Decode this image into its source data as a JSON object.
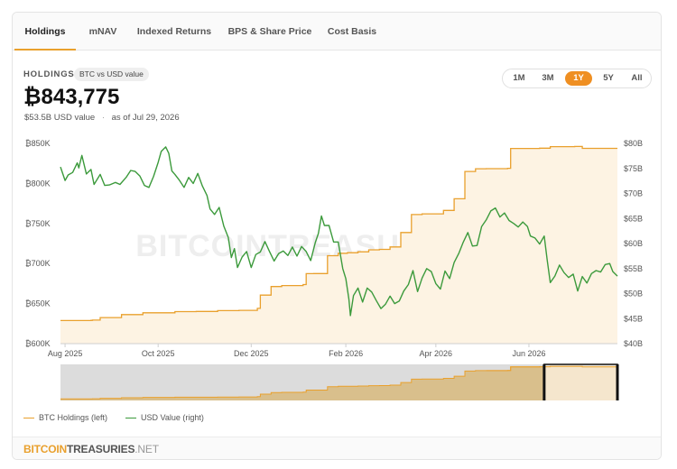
{
  "tabs": [
    {
      "label": "Holdings",
      "active": true
    },
    {
      "label": "mNAV",
      "active": false
    },
    {
      "label": "Indexed Returns",
      "active": false
    },
    {
      "label": "BPS & Share Price",
      "active": false
    },
    {
      "label": "Cost Basis",
      "active": false
    }
  ],
  "header": {
    "title": "HOLDINGS",
    "badge": "BTC vs USD value",
    "value": "₿843,775",
    "usd_value": "$53.5B USD value",
    "separator": "·",
    "as_of": "as of Jul 29, 2026"
  },
  "range_buttons": [
    {
      "label": "1M",
      "active": false
    },
    {
      "label": "3M",
      "active": false
    },
    {
      "label": "1Y",
      "active": true
    },
    {
      "label": "5Y",
      "active": false
    },
    {
      "label": "All",
      "active": false
    }
  ],
  "watermark": "BITCOINTREASURIES.NET",
  "legend": {
    "btc": "BTC Holdings (left)",
    "usd": "USD Value (right)"
  },
  "footer": {
    "logo_a": "BITCOIN",
    "logo_b": "TREASURIES",
    "logo_c": ".NET"
  },
  "colors": {
    "btc_line": "#e9a02d",
    "btc_fill": "#fdf3e3",
    "usd_line": "#3c9a3c",
    "accent": "#ef8f22"
  },
  "chart_data": {
    "type": "line",
    "x_range": [
      "2025-07-29",
      "2026-07-29"
    ],
    "x_ticks": [
      "Aug 2025",
      "Oct 2025",
      "Dec 2025",
      "Feb 2026",
      "Apr 2026",
      "Jun 2026"
    ],
    "y_left": {
      "label": "BTC Holdings",
      "ylim": [
        600000,
        850000
      ],
      "ticks": [
        "₿600K",
        "₿650K",
        "₿700K",
        "₿750K",
        "₿800K",
        "₿850K"
      ]
    },
    "y_right": {
      "label": "USD Value",
      "ylim": [
        40,
        80
      ],
      "ticks": [
        "$40B",
        "$45B",
        "$50B",
        "$55B",
        "$60B",
        "$65B",
        "$70B",
        "$75B",
        "$80B"
      ]
    },
    "legend_position": "bottom-left",
    "grid": false,
    "series": [
      {
        "name": "BTC Holdings (left)",
        "axis": "left",
        "area": true,
        "points": [
          [
            "2025-07-29",
            628800
          ],
          [
            "2025-08-18",
            629000
          ],
          [
            "2025-08-19",
            629400
          ],
          [
            "2025-08-24",
            632500
          ],
          [
            "2025-09-07",
            636300
          ],
          [
            "2025-09-21",
            638500
          ],
          [
            "2025-10-12",
            640000
          ],
          [
            "2025-10-26",
            640200
          ],
          [
            "2025-11-09",
            641200
          ],
          [
            "2025-11-23",
            641500
          ],
          [
            "2025-12-05",
            644000
          ],
          [
            "2025-12-07",
            660600
          ],
          [
            "2025-12-14",
            671300
          ],
          [
            "2025-12-21",
            672500
          ],
          [
            "2026-01-04",
            673800
          ],
          [
            "2026-01-06",
            687400
          ],
          [
            "2026-01-11",
            687500
          ],
          [
            "2026-01-20",
            709800
          ],
          [
            "2026-01-27",
            712800
          ],
          [
            "2026-02-02",
            713500
          ],
          [
            "2026-02-09",
            714600
          ],
          [
            "2026-02-16",
            717100
          ],
          [
            "2026-02-23",
            717700
          ],
          [
            "2026-03-02",
            720700
          ],
          [
            "2026-03-09",
            738700
          ],
          [
            "2026-03-16",
            761100
          ],
          [
            "2026-03-23",
            762000
          ],
          [
            "2026-03-30",
            762100
          ],
          [
            "2026-04-06",
            766300
          ],
          [
            "2026-04-13",
            780900
          ],
          [
            "2026-04-20",
            815000
          ],
          [
            "2026-04-27",
            818300
          ],
          [
            "2026-05-04",
            818500
          ],
          [
            "2026-05-18",
            818900
          ],
          [
            "2026-05-20",
            843700
          ],
          [
            "2026-06-08",
            844000
          ],
          [
            "2026-06-15",
            846000
          ],
          [
            "2026-07-01",
            846200
          ],
          [
            "2026-07-06",
            843775
          ],
          [
            "2026-07-29",
            843775
          ]
        ]
      },
      {
        "name": "USD Value (right)",
        "axis": "right",
        "area": false,
        "points": [
          [
            "2025-07-29",
            75.3
          ],
          [
            "2025-08-01",
            72.6
          ],
          [
            "2025-08-03",
            73.7
          ],
          [
            "2025-08-06",
            74.2
          ],
          [
            "2025-08-09",
            76.1
          ],
          [
            "2025-08-10",
            75.1
          ],
          [
            "2025-08-12",
            77.6
          ],
          [
            "2025-08-15",
            73.9
          ],
          [
            "2025-08-18",
            74.8
          ],
          [
            "2025-08-20",
            71.8
          ],
          [
            "2025-08-24",
            73.8
          ],
          [
            "2025-08-27",
            71.6
          ],
          [
            "2025-08-30",
            71.7
          ],
          [
            "2025-09-03",
            72.2
          ],
          [
            "2025-09-06",
            71.8
          ],
          [
            "2025-09-10",
            73.2
          ],
          [
            "2025-09-13",
            74.6
          ],
          [
            "2025-09-16",
            74.4
          ],
          [
            "2025-09-19",
            73.5
          ],
          [
            "2025-09-22",
            71.6
          ],
          [
            "2025-09-25",
            71.2
          ],
          [
            "2025-09-28",
            73.4
          ],
          [
            "2025-10-01",
            76.2
          ],
          [
            "2025-10-03",
            78.4
          ],
          [
            "2025-10-06",
            79.3
          ],
          [
            "2025-10-08",
            78.0
          ],
          [
            "2025-10-10",
            74.5
          ],
          [
            "2025-10-12",
            73.8
          ],
          [
            "2025-10-15",
            72.6
          ],
          [
            "2025-10-18",
            71.2
          ],
          [
            "2025-10-21",
            73.2
          ],
          [
            "2025-10-24",
            72.0
          ],
          [
            "2025-10-27",
            74.0
          ],
          [
            "2025-10-30",
            71.5
          ],
          [
            "2025-11-02",
            69.6
          ],
          [
            "2025-11-04",
            66.9
          ],
          [
            "2025-11-07",
            65.8
          ],
          [
            "2025-11-10",
            67.2
          ],
          [
            "2025-11-13",
            63.5
          ],
          [
            "2025-11-16",
            61.2
          ],
          [
            "2025-11-18",
            57.2
          ],
          [
            "2025-11-20",
            59.0
          ],
          [
            "2025-11-22",
            55.2
          ],
          [
            "2025-11-25",
            57.3
          ],
          [
            "2025-11-28",
            58.4
          ],
          [
            "2025-12-01",
            55.2
          ],
          [
            "2025-12-04",
            57.8
          ],
          [
            "2025-12-07",
            58.3
          ],
          [
            "2025-12-10",
            60.4
          ],
          [
            "2025-12-13",
            58.4
          ],
          [
            "2025-12-16",
            56.5
          ],
          [
            "2025-12-19",
            58.0
          ],
          [
            "2025-12-22",
            58.5
          ],
          [
            "2025-12-25",
            57.6
          ],
          [
            "2025-12-28",
            59.3
          ],
          [
            "2025-12-31",
            57.5
          ],
          [
            "2026-01-03",
            59.4
          ],
          [
            "2026-01-06",
            58.4
          ],
          [
            "2026-01-09",
            56.6
          ],
          [
            "2026-01-12",
            60.2
          ],
          [
            "2026-01-14",
            62.0
          ],
          [
            "2026-01-16",
            65.5
          ],
          [
            "2026-01-18",
            63.6
          ],
          [
            "2026-01-21",
            63.6
          ],
          [
            "2026-01-24",
            60.3
          ],
          [
            "2026-01-27",
            60.3
          ],
          [
            "2026-01-30",
            55.0
          ],
          [
            "2026-02-01",
            53.0
          ],
          [
            "2026-02-03",
            48.9
          ],
          [
            "2026-02-04",
            45.6
          ],
          [
            "2026-02-06",
            49.6
          ],
          [
            "2026-02-09",
            51.1
          ],
          [
            "2026-02-12",
            48.3
          ],
          [
            "2026-02-15",
            51.1
          ],
          [
            "2026-02-18",
            50.3
          ],
          [
            "2026-02-21",
            48.6
          ],
          [
            "2026-02-24",
            47.0
          ],
          [
            "2026-02-27",
            47.9
          ],
          [
            "2026-03-02",
            49.5
          ],
          [
            "2026-03-05",
            48.0
          ],
          [
            "2026-03-08",
            48.5
          ],
          [
            "2026-03-11",
            50.5
          ],
          [
            "2026-03-14",
            51.8
          ],
          [
            "2026-03-17",
            54.6
          ],
          [
            "2026-03-20",
            50.4
          ],
          [
            "2026-03-23",
            53.1
          ],
          [
            "2026-03-26",
            55.0
          ],
          [
            "2026-03-29",
            54.4
          ],
          [
            "2026-04-01",
            52.0
          ],
          [
            "2026-04-04",
            50.9
          ],
          [
            "2026-04-07",
            54.5
          ],
          [
            "2026-04-10",
            53.0
          ],
          [
            "2026-04-13",
            56.2
          ],
          [
            "2026-04-16",
            58.0
          ],
          [
            "2026-04-19",
            60.3
          ],
          [
            "2026-04-22",
            62.2
          ],
          [
            "2026-04-25",
            59.5
          ],
          [
            "2026-04-28",
            59.6
          ],
          [
            "2026-05-01",
            63.4
          ],
          [
            "2026-05-04",
            64.7
          ],
          [
            "2026-05-07",
            66.5
          ],
          [
            "2026-05-10",
            67.1
          ],
          [
            "2026-05-13",
            65.3
          ],
          [
            "2026-05-16",
            66.1
          ],
          [
            "2026-05-19",
            64.6
          ],
          [
            "2026-05-22",
            64.0
          ],
          [
            "2026-05-25",
            63.3
          ],
          [
            "2026-05-28",
            64.3
          ],
          [
            "2026-05-31",
            63.4
          ],
          [
            "2026-06-02",
            61.5
          ],
          [
            "2026-06-05",
            61.1
          ],
          [
            "2026-06-08",
            59.9
          ],
          [
            "2026-06-11",
            61.5
          ],
          [
            "2026-06-13",
            56.7
          ],
          [
            "2026-06-15",
            52.2
          ],
          [
            "2026-06-18",
            53.5
          ],
          [
            "2026-06-21",
            55.7
          ],
          [
            "2026-06-24",
            54.2
          ],
          [
            "2026-06-27",
            53.2
          ],
          [
            "2026-06-30",
            53.9
          ],
          [
            "2026-07-03",
            50.5
          ],
          [
            "2026-07-06",
            53.4
          ],
          [
            "2026-07-09",
            52.1
          ],
          [
            "2026-07-12",
            54.0
          ],
          [
            "2026-07-15",
            54.6
          ],
          [
            "2026-07-18",
            54.3
          ],
          [
            "2026-07-21",
            55.8
          ],
          [
            "2026-07-24",
            56.0
          ],
          [
            "2026-07-26",
            54.4
          ],
          [
            "2026-07-29",
            53.5
          ]
        ]
      }
    ]
  }
}
